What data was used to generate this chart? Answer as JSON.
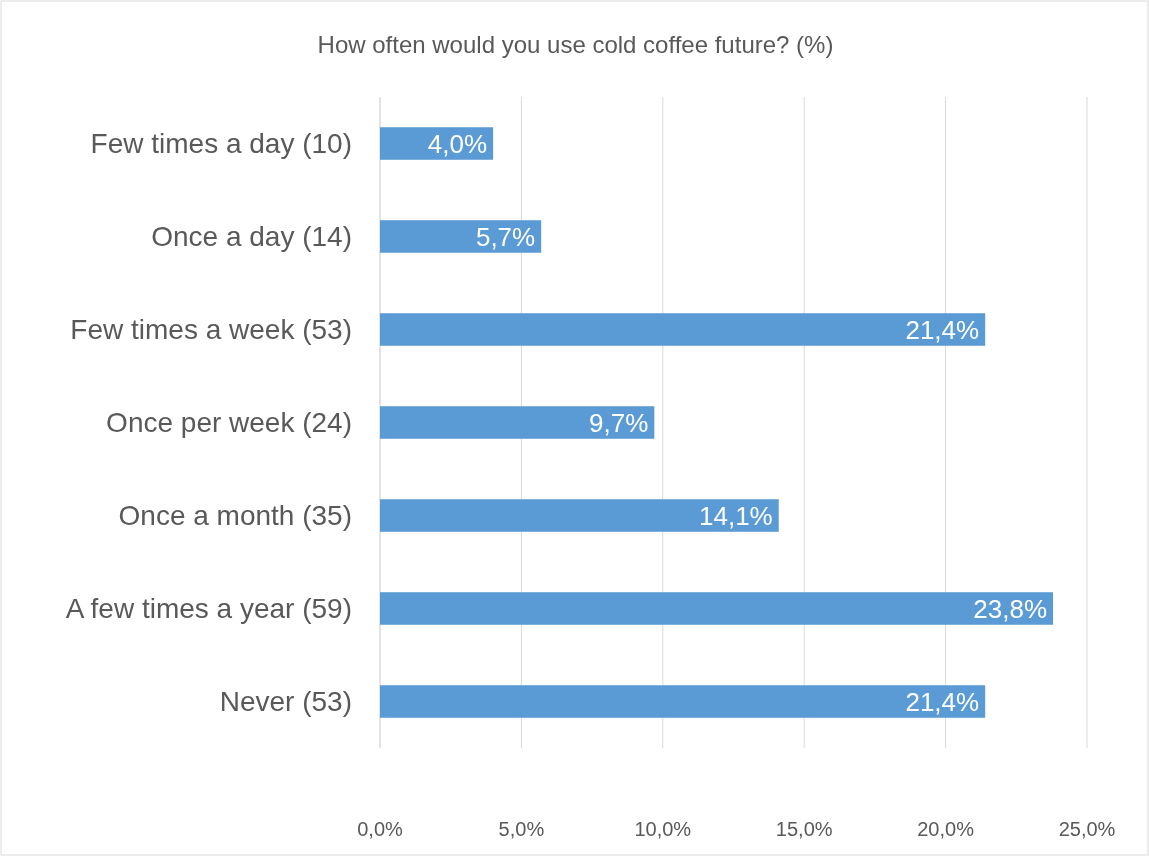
{
  "chart_data": {
    "type": "bar",
    "orientation": "horizontal",
    "title": "How often would you use cold coffee future? (%)",
    "categories": [
      "Few times a day (10)",
      "Once a day (14)",
      "Few times a week (53)",
      "Once per week (24)",
      "Once a month (35)",
      "A few times a year (59)",
      "Never (53)"
    ],
    "values": [
      4.0,
      5.7,
      21.4,
      9.7,
      14.1,
      23.8,
      21.4
    ],
    "value_labels": [
      "4,0%",
      "5,7%",
      "21,4%",
      "9,7%",
      "14,1%",
      "23,8%",
      "21,4%"
    ],
    "color": "#5b9bd5",
    "xlim": [
      0,
      25
    ],
    "xticks": [
      {
        "value": 0,
        "label": "0,0%"
      },
      {
        "value": 5,
        "label": "5,0%"
      },
      {
        "value": 10,
        "label": "10,0%"
      },
      {
        "value": 15,
        "label": "15,0%"
      },
      {
        "value": 20,
        "label": "20,0%"
      },
      {
        "value": 25,
        "label": "25,0%"
      }
    ],
    "grid": "x"
  }
}
